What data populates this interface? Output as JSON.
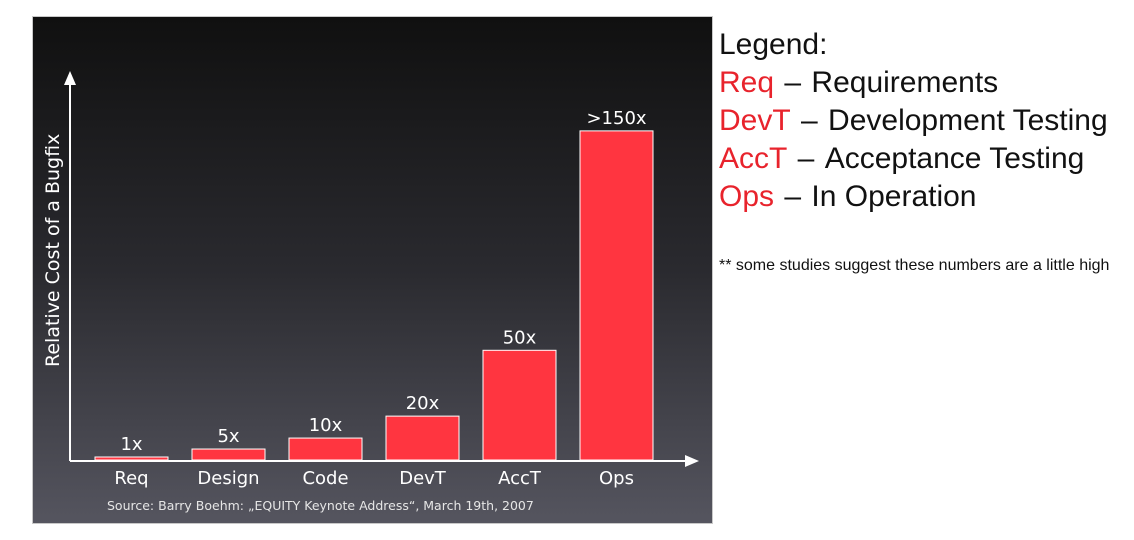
{
  "chart_data": {
    "type": "bar",
    "categories": [
      "Req",
      "Design",
      "Code",
      "DevT",
      "AccT",
      "Ops"
    ],
    "values": [
      1,
      5,
      10,
      20,
      50,
      150
    ],
    "data_labels": [
      "1x",
      "5x",
      "10x",
      "20x",
      "50x",
      ">150x"
    ],
    "ylabel": "Relative Cost of a Bugfix",
    "xlabel": "",
    "ylim": [
      0,
      170
    ],
    "grid": false,
    "source": "Source: Barry Boehm: „EQUITY Keynote Address“, March 19th, 2007",
    "bar_color": "#ff3540",
    "label_color": "#ffffff"
  },
  "legend": {
    "heading": "Legend:",
    "items": [
      {
        "abbr": "Req",
        "dash": "–",
        "text": "Requirements"
      },
      {
        "abbr": "DevT",
        "dash": "–",
        "text": "Development Testing"
      },
      {
        "abbr": "AccT",
        "dash": "–",
        "text": "Acceptance Testing"
      },
      {
        "abbr": "Ops",
        "dash": "–",
        "text": "In Operation"
      }
    ],
    "accent_color": "#e8232c"
  },
  "footnote": "** some studies suggest these numbers are a little high"
}
